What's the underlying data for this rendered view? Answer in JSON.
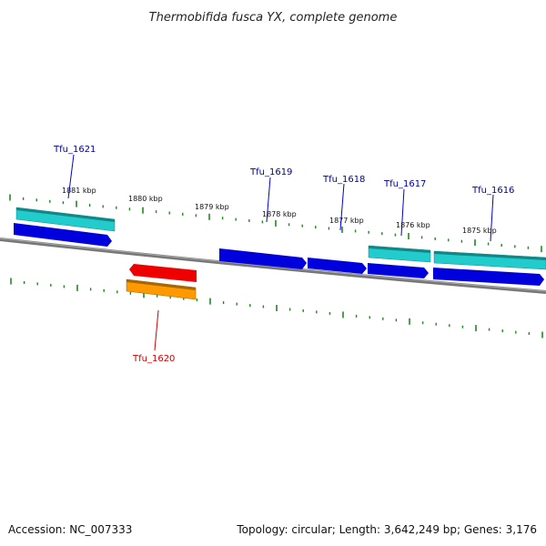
{
  "title": "Thermobifida fusca YX, complete genome",
  "footer": {
    "accession": "Accession: NC_007333",
    "summary": "Topology: circular; Length: 3,642,249 bp; Genes: 3,176"
  },
  "colors": {
    "forward_cds": "#0000dd",
    "forward_gene": "#22cccc",
    "reverse_cds": "#ee0000",
    "reverse_gene": "#ff9900",
    "tick": "#228822",
    "backbone": "#777777",
    "label_forward": "#000099",
    "label_reverse": "#cc0000"
  },
  "ruler": {
    "labels": [
      "1881 kbp",
      "1880 kbp",
      "1879 kbp",
      "1878 kbp",
      "1877 kbp",
      "1876 kbp",
      "1875 kbp"
    ]
  },
  "genes": [
    {
      "name": "Tfu_1621",
      "strand": "forward"
    },
    {
      "name": "Tfu_1620",
      "strand": "reverse"
    },
    {
      "name": "Tfu_1619",
      "strand": "forward"
    },
    {
      "name": "Tfu_1618",
      "strand": "forward"
    },
    {
      "name": "Tfu_1617",
      "strand": "forward"
    },
    {
      "name": "Tfu_1616",
      "strand": "forward"
    }
  ]
}
